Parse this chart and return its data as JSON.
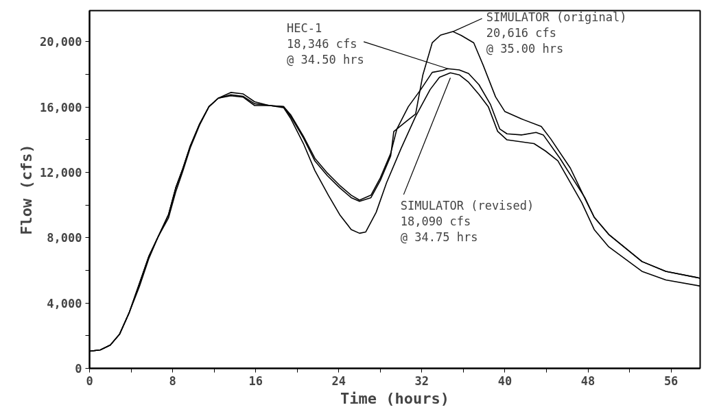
{
  "chart_data": {
    "type": "line",
    "xlabel": "Time (hours)",
    "ylabel": "Flow (cfs)",
    "xlim": [
      0,
      58.8
    ],
    "ylim": [
      0,
      21900
    ],
    "xticks": [
      0,
      {
        "value": 4,
        "label": null
      },
      8,
      {
        "value": 12,
        "label": null
      },
      16,
      {
        "value": 20,
        "label": null
      },
      24,
      {
        "value": 28,
        "label": null
      },
      32,
      {
        "value": 36,
        "label": null
      },
      40,
      {
        "value": 44,
        "label": null
      },
      48,
      {
        "value": 52,
        "label": null
      },
      56
    ],
    "yticks": [
      0,
      {
        "value": 2000,
        "label": null
      },
      {
        "value": 4000,
        "label": "4,000"
      },
      {
        "value": 6000,
        "label": null
      },
      {
        "value": 8000,
        "label": "8,000"
      },
      {
        "value": 10000,
        "label": null
      },
      {
        "value": 12000,
        "label": "12,000"
      },
      {
        "value": 14000,
        "label": null
      },
      {
        "value": 16000,
        "label": "16,000"
      },
      {
        "value": 18000,
        "label": null
      },
      {
        "value": 20000,
        "label": "20,000"
      }
    ],
    "grid": false,
    "marker": "none",
    "line_style": "solid",
    "series": [
      {
        "color": "#000000",
        "x": [
          0,
          1.05,
          2.0,
          2.9,
          3.8,
          4.8,
          5.7,
          6.6,
          7.6,
          8.3,
          9.0,
          9.7,
          10.6,
          11.5,
          12.4,
          13.6,
          14.8,
          15.9,
          17.3,
          18.7,
          19.4,
          20.6,
          21.7,
          22.9,
          24.1,
          25.2,
          26.0,
          27.1,
          28.0,
          29.0,
          29.6,
          30.7,
          31.9,
          33.0,
          34.0,
          34.5,
          35.6,
          36.5,
          37.5,
          38.6,
          39.5,
          40.2,
          41.6,
          43.0,
          43.7,
          45.3,
          47.7,
          48.6,
          50.0,
          53.2,
          55.5,
          58.8
        ],
        "values": [
          1050,
          1130,
          1430,
          2100,
          3380,
          5190,
          6840,
          8050,
          9400,
          11050,
          12260,
          13610,
          14960,
          16020,
          16540,
          16890,
          16800,
          16320,
          16090,
          16020,
          15500,
          14210,
          12860,
          11960,
          11200,
          10600,
          10300,
          10600,
          11660,
          13160,
          14660,
          16020,
          17070,
          18120,
          18240,
          18346,
          18270,
          18050,
          17370,
          16170,
          14660,
          14360,
          14290,
          14440,
          14290,
          12860,
          10450,
          9250,
          8200,
          6540,
          5940,
          5520
        ]
      },
      {
        "color": "#000000",
        "x": [
          0,
          1.05,
          2.0,
          2.9,
          3.8,
          4.8,
          5.7,
          6.6,
          7.6,
          8.3,
          9.0,
          9.7,
          10.6,
          11.5,
          12.4,
          13.6,
          14.8,
          15.9,
          17.3,
          18.7,
          19.4,
          20.6,
          21.7,
          22.9,
          24.1,
          25.2,
          26.0,
          27.1,
          28.0,
          29.0,
          29.3,
          30.5,
          31.4,
          32.1,
          33.0,
          33.8,
          35.0,
          35.8,
          37.0,
          37.9,
          39.1,
          40.0,
          41.6,
          43.5,
          44.4,
          46.3,
          47.9,
          48.6,
          50.0,
          53.2,
          55.5,
          58.8
        ],
        "values": [
          1050,
          1130,
          1430,
          2100,
          3380,
          5190,
          6840,
          8050,
          9400,
          11050,
          12260,
          13610,
          14960,
          16020,
          16540,
          16690,
          16600,
          16090,
          16090,
          16020,
          15400,
          14100,
          12700,
          11800,
          11050,
          10450,
          10230,
          10450,
          11500,
          13000,
          14500,
          15120,
          15570,
          17970,
          19930,
          20400,
          20616,
          20380,
          19930,
          18570,
          16620,
          15720,
          15270,
          14810,
          14060,
          12260,
          10150,
          9250,
          8200,
          6540,
          5940,
          5520
        ]
      },
      {
        "color": "#000000",
        "x": [
          0,
          1.05,
          2.0,
          2.9,
          3.8,
          4.8,
          5.7,
          6.6,
          7.6,
          8.3,
          9.0,
          9.7,
          10.6,
          11.5,
          12.4,
          13.6,
          14.8,
          15.9,
          17.3,
          18.7,
          19.4,
          20.6,
          21.7,
          23.0,
          24.1,
          25.2,
          26.0,
          26.6,
          27.6,
          28.6,
          30.0,
          31.4,
          32.8,
          33.7,
          34.75,
          35.6,
          36.5,
          37.5,
          38.4,
          39.3,
          40.2,
          42.8,
          43.9,
          45.1,
          47.4,
          48.6,
          50.0,
          53.2,
          55.5,
          58.8
        ],
        "values": [
          1050,
          1130,
          1430,
          2100,
          3380,
          5000,
          6700,
          8050,
          9200,
          10800,
          12100,
          13500,
          14900,
          16020,
          16540,
          16750,
          16650,
          16200,
          16100,
          15950,
          15270,
          13760,
          12110,
          10600,
          9400,
          8500,
          8270,
          8350,
          9550,
          11360,
          13460,
          15420,
          17070,
          17820,
          18090,
          17970,
          17520,
          16770,
          16020,
          14510,
          13990,
          13760,
          13310,
          12710,
          10150,
          8500,
          7440,
          5940,
          5410,
          5040
        ]
      }
    ],
    "annotations": [
      {
        "text": "HEC-1\n18,346 cfs\n@ 34.50 hrs",
        "x": 34.5,
        "y": 18346
      },
      {
        "text": "SIMULATOR (original)\n20,616 cfs\n @ 35.00 hrs",
        "x": 35.0,
        "y": 20616
      },
      {
        "text": "SIMULATOR (revised)\n18,090 cfs\n@ 34.75 hrs",
        "x": 34.75,
        "y": 18090
      }
    ]
  }
}
